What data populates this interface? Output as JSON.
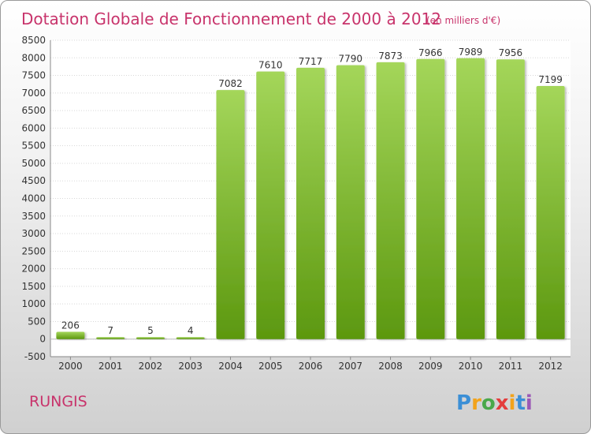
{
  "header": {
    "title": "Dotation Globale de Fonctionnement de 2000 à 2012",
    "subtitle": "(en milliers d'€)"
  },
  "footer": {
    "place": "RUNGIS",
    "logo_letters": [
      "P",
      "r",
      "o",
      "x",
      "i",
      "t",
      "i"
    ],
    "logo_colors": [
      "#3b8fd6",
      "#f2a31b",
      "#4aa84a",
      "#e43c3c",
      "#f2a31b",
      "#3b8fd6",
      "#9b59b6"
    ]
  },
  "colors": {
    "bar_light": "#a4d65a",
    "bar_dark": "#5c980f",
    "title": "#c8336b"
  },
  "chart_data": {
    "type": "bar",
    "title": "Dotation Globale de Fonctionnement de 2000 à 2012",
    "subtitle": "(en milliers d'€)",
    "xlabel": "",
    "ylabel": "",
    "categories": [
      "2000",
      "2001",
      "2002",
      "2003",
      "2004",
      "2005",
      "2006",
      "2007",
      "2008",
      "2009",
      "2010",
      "2011",
      "2012"
    ],
    "values": [
      206,
      7,
      5,
      4,
      7082,
      7610,
      7717,
      7790,
      7873,
      7966,
      7989,
      7956,
      7199
    ],
    "ylim": [
      -500,
      8500
    ],
    "yticks": [
      -500,
      0,
      500,
      1000,
      1500,
      2000,
      2500,
      3000,
      3500,
      4000,
      4500,
      5000,
      5500,
      6000,
      6500,
      7000,
      7500,
      8000,
      8500
    ],
    "grid": true,
    "legend": "none"
  }
}
